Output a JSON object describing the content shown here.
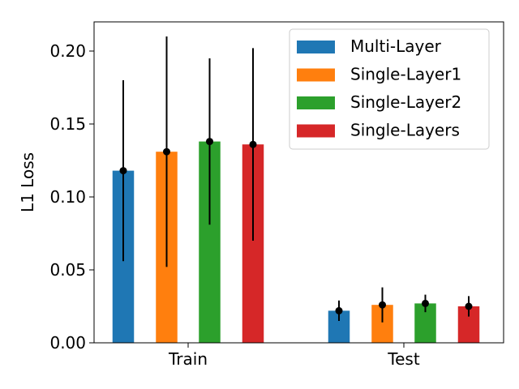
{
  "chart_data": {
    "type": "bar",
    "title": "",
    "xlabel": "",
    "ylabel": "L1 Loss",
    "categories": [
      "Train",
      "Test"
    ],
    "ylim": [
      0,
      0.22
    ],
    "yticks": [
      0.0,
      0.05,
      0.1,
      0.15,
      0.2
    ],
    "ytick_labels": [
      "0.00",
      "0.05",
      "0.10",
      "0.15",
      "0.20"
    ],
    "error_bars": true,
    "grid": false,
    "legend_position": "top-right",
    "series": [
      {
        "name": "Multi-Layer",
        "color": "#1f77b4",
        "values": [
          0.118,
          0.022
        ],
        "errors": [
          0.062,
          0.007
        ]
      },
      {
        "name": "Single-Layer1",
        "color": "#ff7f0e",
        "values": [
          0.131,
          0.026
        ],
        "errors": [
          0.079,
          0.012
        ]
      },
      {
        "name": "Single-Layer2",
        "color": "#2ca02c",
        "values": [
          0.138,
          0.027
        ],
        "errors": [
          0.057,
          0.006
        ]
      },
      {
        "name": "Single-Layers",
        "color": "#d62728",
        "values": [
          0.136,
          0.025
        ],
        "errors": [
          0.066,
          0.007
        ]
      }
    ]
  }
}
